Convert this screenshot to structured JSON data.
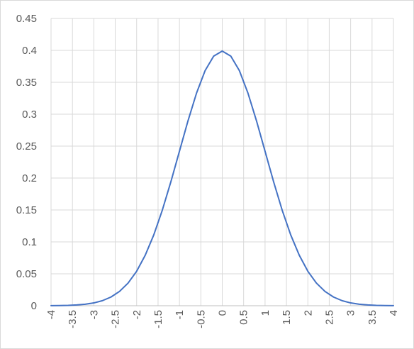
{
  "chart_data": {
    "type": "line",
    "title": "",
    "xlabel": "",
    "ylabel": "",
    "x_ticks": [
      "-4",
      "-3.5",
      "-3",
      "-2.5",
      "-2",
      "-1.5",
      "-1",
      "-0.5",
      "0",
      "0.5",
      "1",
      "1.5",
      "2",
      "2.5",
      "3",
      "3.5",
      "4"
    ],
    "y_ticks": [
      "0",
      "0.05",
      "0.1",
      "0.15",
      "0.2",
      "0.25",
      "0.3",
      "0.35",
      "0.4",
      "0.45"
    ],
    "xlim": [
      -4,
      4
    ],
    "ylim": [
      0,
      0.45
    ],
    "grid": true,
    "legend": "none",
    "series": [
      {
        "color": "#4472C4",
        "x": [
          -4,
          -3.8,
          -3.6,
          -3.4,
          -3.2,
          -3,
          -2.8,
          -2.6,
          -2.4,
          -2.2,
          -2,
          -1.8,
          -1.6,
          -1.4,
          -1.2,
          -1,
          -0.8,
          -0.6,
          -0.4,
          -0.2,
          0,
          0.2,
          0.4,
          0.6,
          0.8,
          1,
          1.2,
          1.4,
          1.6,
          1.8,
          2,
          2.2,
          2.4,
          2.6,
          2.8,
          3,
          3.2,
          3.4,
          3.6,
          3.8,
          4
        ],
        "values": [
          0.0001,
          0.0003,
          0.0006,
          0.0012,
          0.0024,
          0.0044,
          0.0079,
          0.0136,
          0.0224,
          0.0355,
          0.054,
          0.079,
          0.1109,
          0.1497,
          0.1942,
          0.242,
          0.2897,
          0.3332,
          0.3683,
          0.391,
          0.3989,
          0.391,
          0.3683,
          0.3332,
          0.2897,
          0.242,
          0.1942,
          0.1497,
          0.1109,
          0.079,
          0.054,
          0.0355,
          0.0224,
          0.0136,
          0.0079,
          0.0044,
          0.0024,
          0.0012,
          0.0006,
          0.0003,
          0.0001
        ]
      }
    ]
  }
}
